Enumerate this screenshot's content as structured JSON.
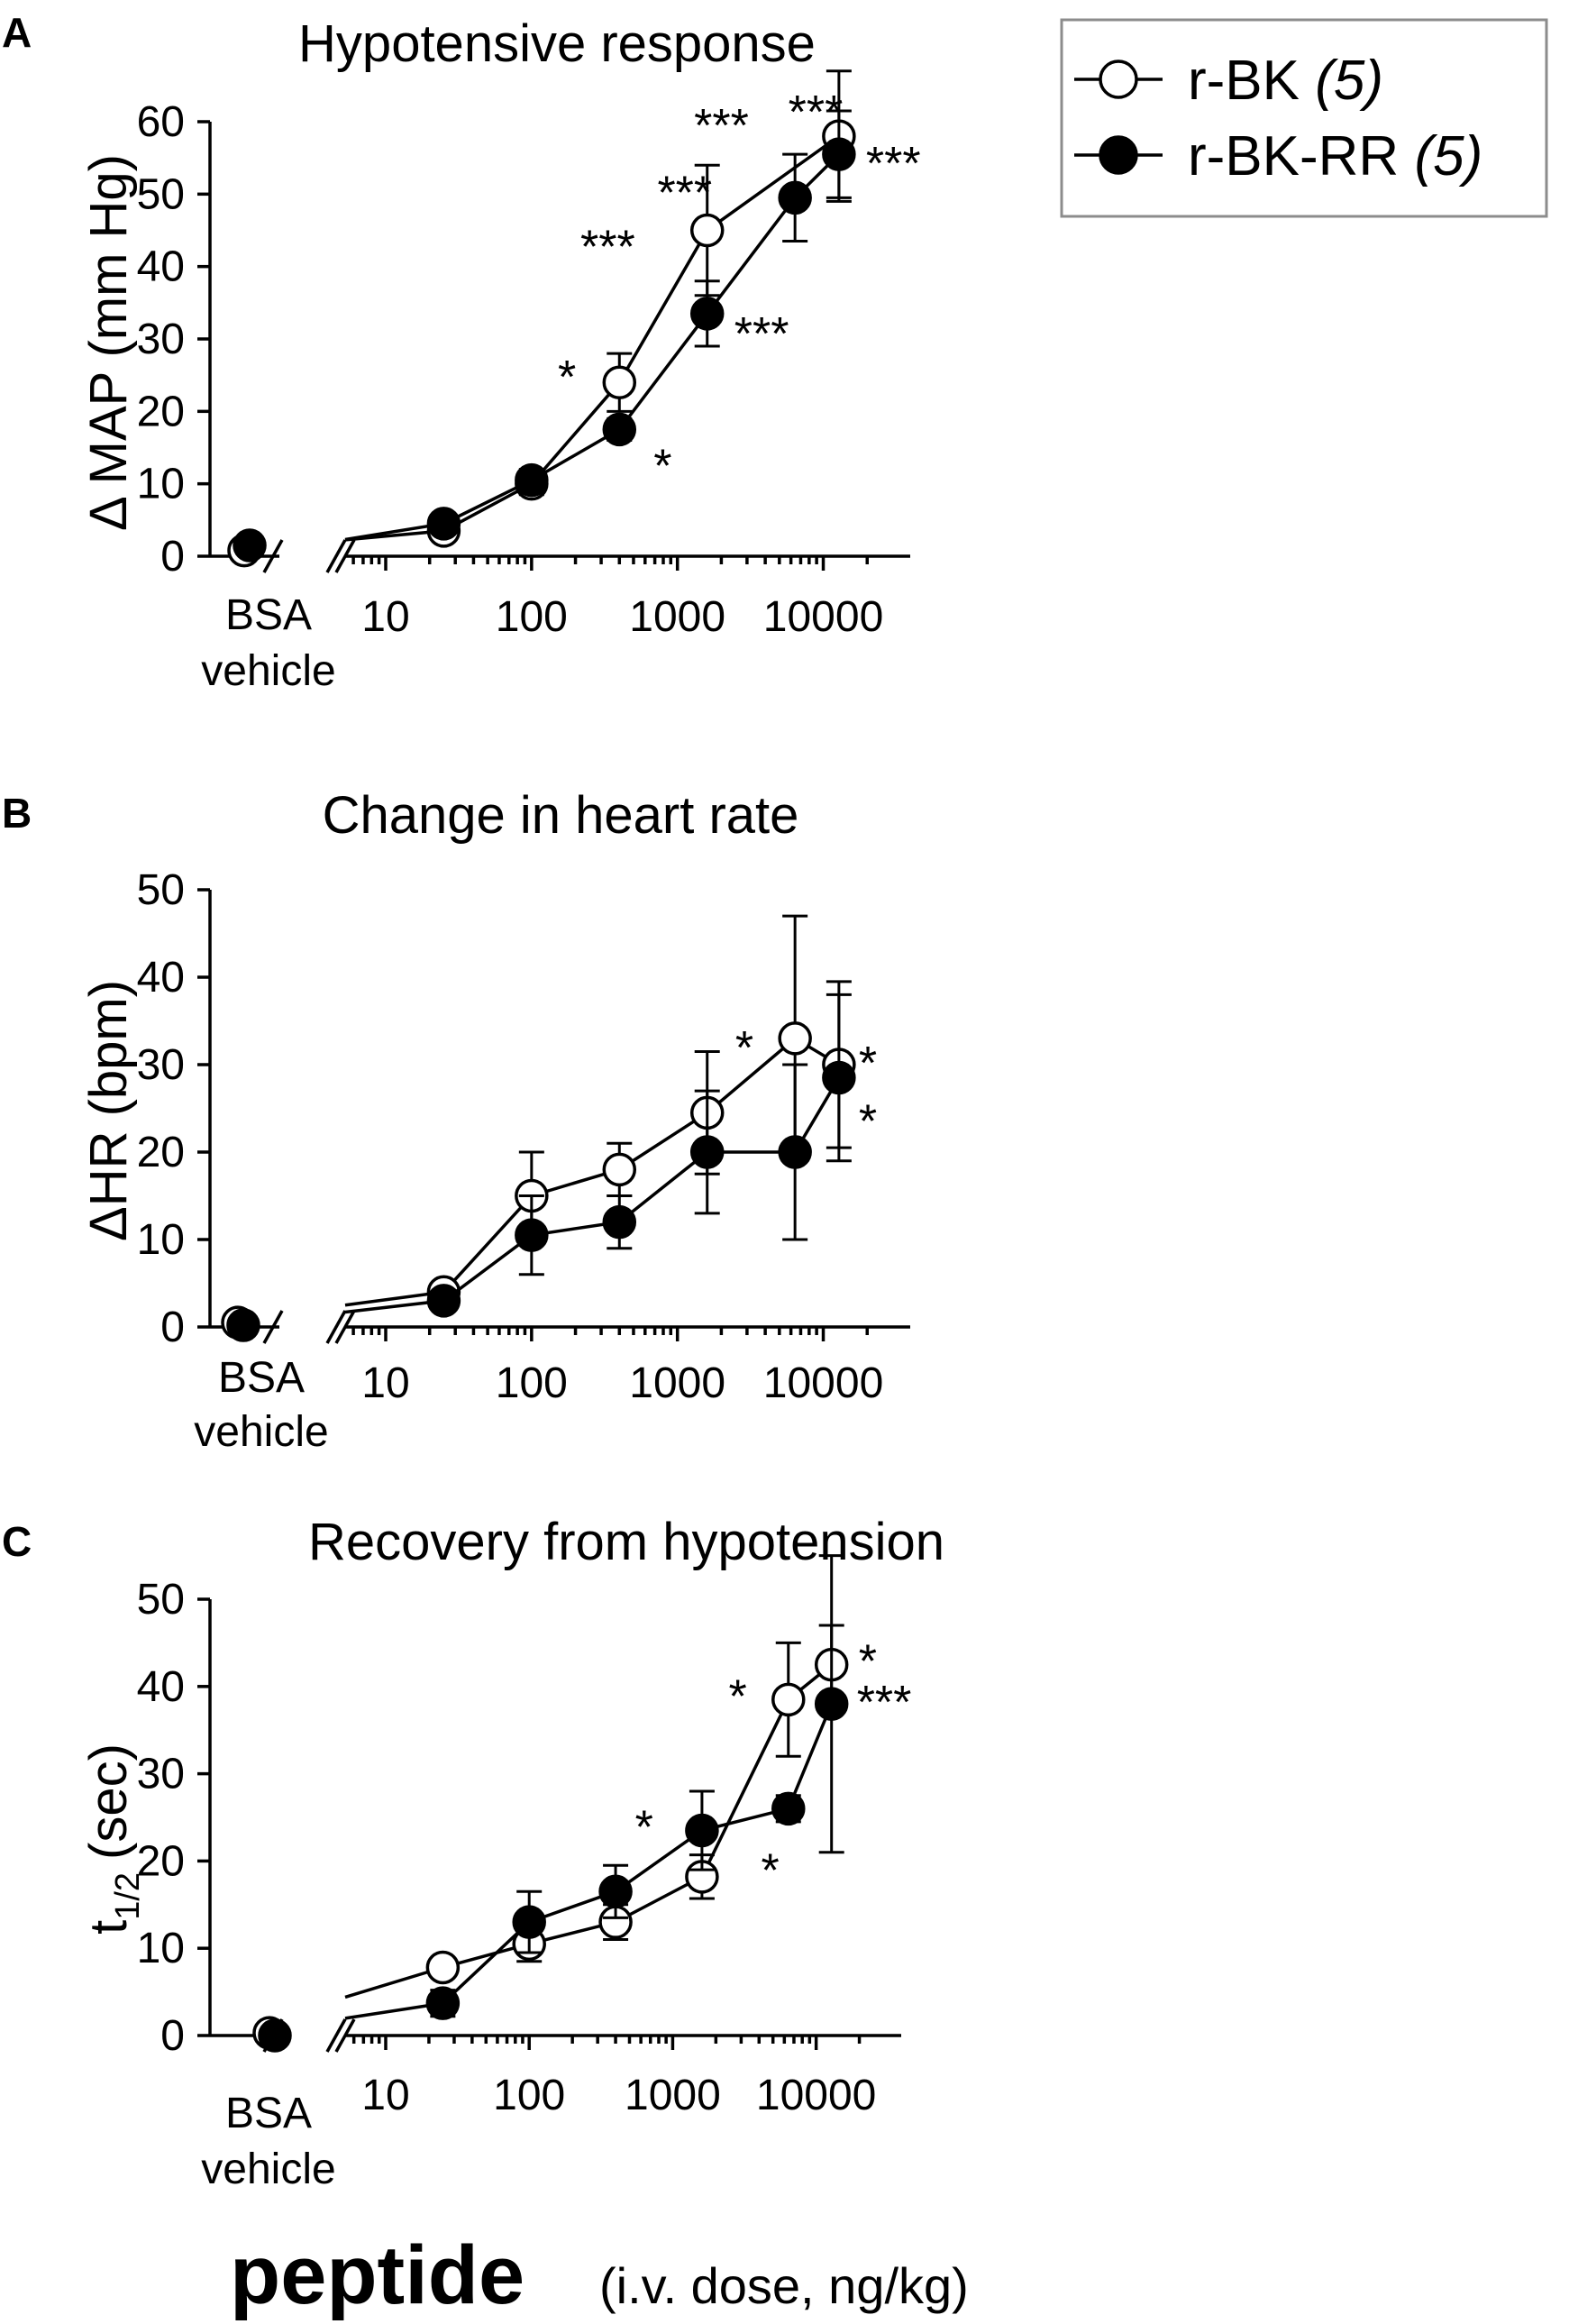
{
  "legend": {
    "entries": [
      {
        "name": "r-BK",
        "n": "(5)",
        "marker": "open-circle"
      },
      {
        "name": "r-BK-RR",
        "n": "(5)",
        "marker": "filled-circle"
      }
    ]
  },
  "xaxis": {
    "main_label": "peptide",
    "sub_label": "(i.v. dose, ng/kg)",
    "tick_labels": [
      "10",
      "100",
      "1000",
      "10000"
    ],
    "vehicle_label_line1": "BSA",
    "vehicle_label_line2": "vehicle"
  },
  "chart_data": [
    {
      "panel": "A",
      "type": "line",
      "title": "Hypotensive response",
      "ylabel": "Δ MAP (mm Hg)",
      "xlabel": "peptide (i.v. dose, ng/kg)",
      "xscale": "log",
      "xlim": [
        5,
        30000
      ],
      "ylim": [
        0,
        60
      ],
      "yticks": [
        0,
        10,
        20,
        30,
        40,
        50,
        60
      ],
      "categories_vehicle": "BSA vehicle",
      "series": [
        {
          "name": "r-BK",
          "marker": "open",
          "vehicle": 0.8,
          "x": [
            25,
            100,
            400,
            1600,
            12800
          ],
          "y": [
            3.5,
            10,
            24,
            45,
            58
          ],
          "err": [
            1,
            1.5,
            4,
            9,
            9
          ],
          "sig": [
            "",
            "",
            "*",
            "***",
            "***"
          ]
        },
        {
          "name": "r-BK-RR",
          "marker": "filled",
          "vehicle": 1.5,
          "x": [
            25,
            100,
            400,
            1600,
            6400,
            12800
          ],
          "y": [
            4.5,
            10.5,
            17.5,
            33.5,
            49.5,
            55.5
          ],
          "err": [
            1,
            1.5,
            1.5,
            4.5,
            6,
            6
          ],
          "sig": [
            "",
            "",
            "*",
            "***",
            "***",
            "***"
          ]
        }
      ],
      "annotations": [
        "***"
      ]
    },
    {
      "panel": "B",
      "type": "line",
      "title": "Change in heart rate",
      "ylabel": "ΔHR (bpm)",
      "xlabel": "peptide (i.v. dose, ng/kg)",
      "xscale": "log",
      "xlim": [
        5,
        30000
      ],
      "ylim": [
        0,
        50
      ],
      "yticks": [
        0,
        10,
        20,
        30,
        40,
        50
      ],
      "series": [
        {
          "name": "r-BK",
          "marker": "open",
          "vehicle": 0.5,
          "x": [
            25,
            100,
            400,
            1600,
            6400,
            12800
          ],
          "y": [
            4,
            15,
            18,
            24.5,
            33,
            30
          ],
          "err": [
            1,
            5,
            3,
            7,
            14,
            9.5
          ],
          "sig": [
            "",
            "",
            "",
            "",
            "*",
            "*"
          ]
        },
        {
          "name": "r-BK-RR",
          "marker": "filled",
          "vehicle": 0.2,
          "x": [
            25,
            100,
            400,
            1600,
            6400,
            12800
          ],
          "y": [
            3,
            10.5,
            12,
            20,
            20,
            28.5
          ],
          "err": [
            1,
            4.5,
            3,
            7,
            10,
            9.5
          ],
          "sig": [
            "",
            "",
            "",
            "",
            "",
            "*"
          ]
        }
      ]
    },
    {
      "panel": "C",
      "type": "line",
      "title": "Recovery from hypotension",
      "ylabel": "t1/2 (sec)",
      "ylabel_main": "t",
      "ylabel_sub": "1/2",
      "ylabel_unit": "(sec)",
      "xlabel": "peptide (i.v. dose, ng/kg)",
      "xscale": "log",
      "xlim": [
        5,
        30000
      ],
      "ylim": [
        0,
        50
      ],
      "yticks": [
        0,
        10,
        20,
        30,
        40,
        50
      ],
      "series": [
        {
          "name": "r-BK",
          "marker": "open",
          "vehicle": 0.3,
          "x": [
            25,
            100,
            400,
            1600,
            6400,
            12800
          ],
          "y": [
            7.8,
            10.5,
            13,
            18.2,
            38.5,
            42.5
          ],
          "err": [
            1,
            2,
            2,
            2.5,
            6.5,
            4.5
          ],
          "sig": [
            "",
            "",
            "",
            "",
            "*",
            "*"
          ]
        },
        {
          "name": "r-BK-RR",
          "marker": "filled",
          "vehicle": 0,
          "x": [
            25,
            100,
            400,
            1600,
            6400,
            12800
          ],
          "y": [
            3.7,
            13,
            16.5,
            23.5,
            26,
            38
          ],
          "err": [
            1.5,
            3.5,
            3,
            4.5,
            1.5,
            17
          ],
          "sig": [
            "",
            "",
            "",
            "*",
            "*",
            "***"
          ]
        }
      ]
    }
  ]
}
